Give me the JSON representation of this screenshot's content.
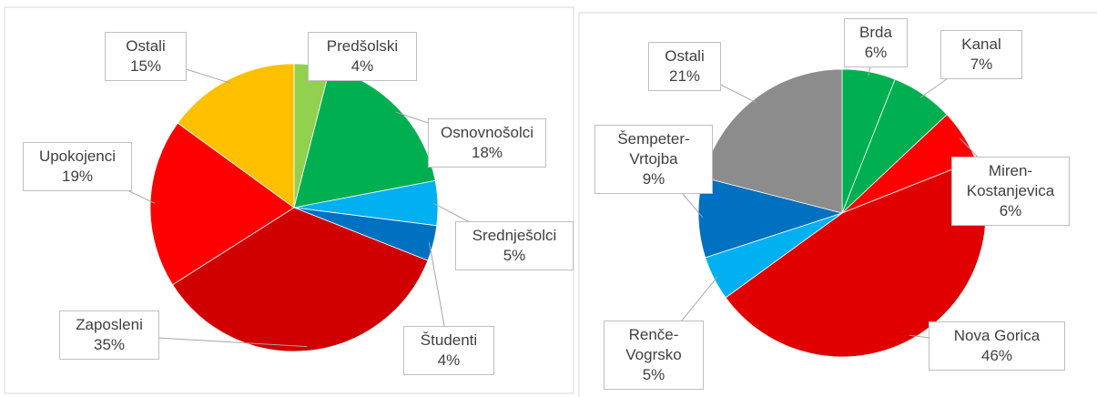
{
  "chart_data": [
    {
      "type": "pie",
      "categories": [
        "Predšolski",
        "Osnovnošolci",
        "Srednješolci",
        "Študenti",
        "Zaposleni",
        "Upokojenci",
        "Ostali"
      ],
      "values": [
        4,
        18,
        5,
        4,
        35,
        19,
        15
      ],
      "value_labels": [
        "4%",
        "18%",
        "5%",
        "4%",
        "35%",
        "19%",
        "15%"
      ],
      "colors": [
        "#92d050",
        "#00b050",
        "#00b0f0",
        "#0070c0",
        "#d00000",
        "#ff0000",
        "#ffc000"
      ]
    },
    {
      "type": "pie",
      "categories": [
        "Brda",
        "Kanal",
        "Miren-Kostanjevica",
        "Nova Gorica",
        "Renče-Vogrsko",
        "Šempeter-Vrtojba",
        "Ostali"
      ],
      "values": [
        6,
        7,
        6,
        46,
        5,
        9,
        21
      ],
      "value_labels": [
        "6%",
        "7%",
        "6%",
        "46%",
        "5%",
        "9%",
        "21%"
      ],
      "colors": [
        "#00b050",
        "#00b050",
        "#ff0000",
        "#e00000",
        "#00b0f0",
        "#0070c0",
        "#8c8c8c"
      ]
    }
  ]
}
